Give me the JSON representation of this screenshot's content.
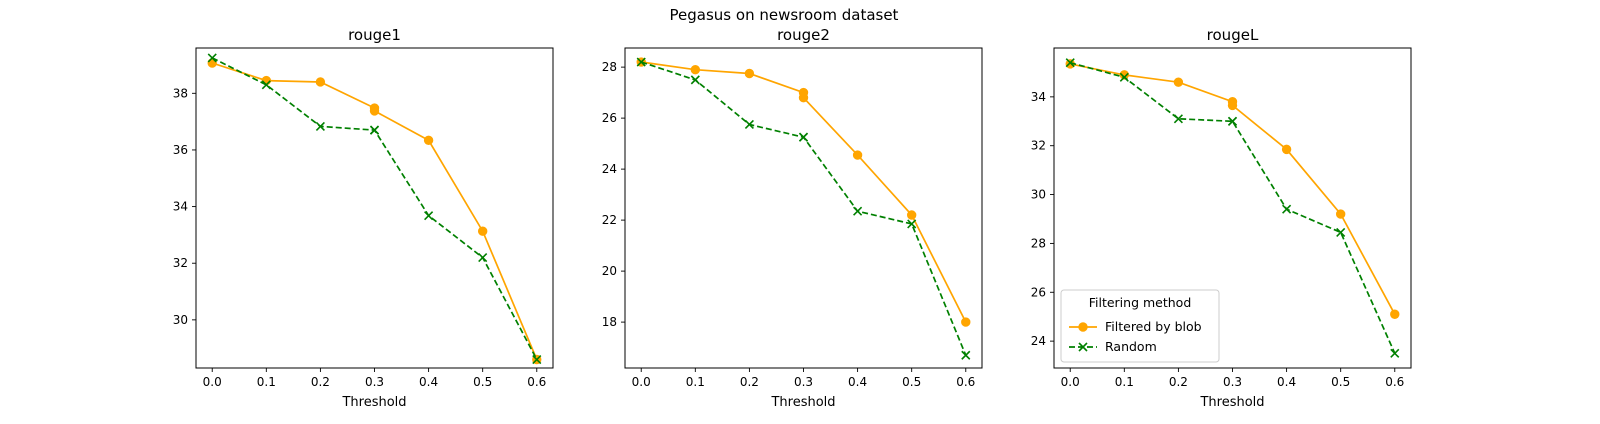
{
  "figure": {
    "suptitle": "Pegasus on newsroom dataset"
  },
  "chart_data": [
    {
      "type": "line",
      "title": "rouge1",
      "xlabel": "Threshold",
      "ylabel": "",
      "x": [
        0.0,
        0.1,
        0.2,
        0.3,
        0.3,
        0.4,
        0.5,
        0.6
      ],
      "xticks": [
        "0.0",
        "0.1",
        "0.2",
        "0.3",
        "0.4",
        "0.5",
        "0.6"
      ],
      "xlim": [
        -0.03,
        0.63
      ],
      "ylim": [
        28.3,
        39.6
      ],
      "yticks": [
        30,
        32,
        34,
        36,
        38
      ],
      "series": [
        {
          "name": "Filtered by blob",
          "color": "#FFA500",
          "marker": "circle",
          "linestyle": "solid",
          "values": [
            39.07,
            38.45,
            38.4,
            37.48,
            37.38,
            36.34,
            33.13,
            28.6
          ]
        },
        {
          "name": "Random",
          "color": "#008000",
          "marker": "x",
          "linestyle": "dashed",
          "values": [
            39.25,
            38.3,
            36.83,
            36.7,
            36.7,
            33.68,
            32.2,
            28.6
          ]
        }
      ],
      "legend": null
    },
    {
      "type": "line",
      "title": "rouge2",
      "xlabel": "Threshold",
      "ylabel": "",
      "x": [
        0.0,
        0.1,
        0.2,
        0.3,
        0.3,
        0.4,
        0.5,
        0.6
      ],
      "xticks": [
        "0.0",
        "0.1",
        "0.2",
        "0.3",
        "0.4",
        "0.5",
        "0.6"
      ],
      "xlim": [
        -0.03,
        0.63
      ],
      "ylim": [
        16.2,
        28.75
      ],
      "yticks": [
        18,
        20,
        22,
        24,
        26,
        28
      ],
      "series": [
        {
          "name": "Filtered by blob",
          "color": "#FFA500",
          "marker": "circle",
          "linestyle": "solid",
          "values": [
            28.2,
            27.9,
            27.75,
            27.0,
            26.8,
            24.55,
            22.2,
            18.0
          ]
        },
        {
          "name": "Random",
          "color": "#008000",
          "marker": "x",
          "linestyle": "dashed",
          "values": [
            28.2,
            27.5,
            25.75,
            25.25,
            25.25,
            22.35,
            21.85,
            16.7
          ]
        }
      ],
      "legend": null
    },
    {
      "type": "line",
      "title": "rougeL",
      "xlabel": "Threshold",
      "ylabel": "",
      "x": [
        0.0,
        0.1,
        0.2,
        0.3,
        0.3,
        0.4,
        0.5,
        0.6
      ],
      "xticks": [
        "0.0",
        "0.1",
        "0.2",
        "0.3",
        "0.4",
        "0.5",
        "0.6"
      ],
      "xlim": [
        -0.03,
        0.63
      ],
      "ylim": [
        22.9,
        36.0
      ],
      "yticks": [
        24,
        26,
        28,
        30,
        32,
        34
      ],
      "series": [
        {
          "name": "Filtered by blob",
          "color": "#FFA500",
          "marker": "circle",
          "linestyle": "solid",
          "values": [
            35.35,
            34.9,
            34.6,
            33.8,
            33.65,
            31.85,
            29.2,
            25.1
          ]
        },
        {
          "name": "Random",
          "color": "#008000",
          "marker": "x",
          "linestyle": "dashed",
          "values": [
            35.4,
            34.8,
            33.1,
            33.0,
            33.0,
            29.4,
            28.45,
            23.5
          ]
        }
      ],
      "legend": {
        "title": "Filtering method",
        "position": "lower-left"
      }
    }
  ]
}
